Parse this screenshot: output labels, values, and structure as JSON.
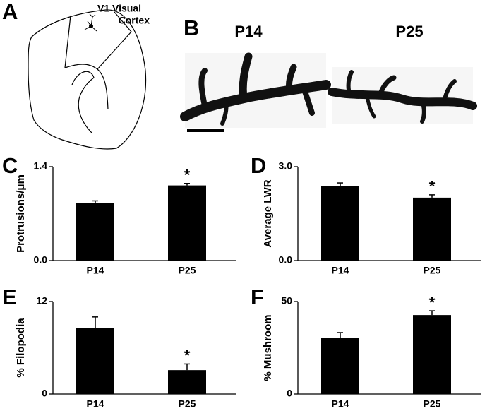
{
  "panel_a": {
    "label": "A",
    "annotation": [
      "V1 Visual",
      "Cortex"
    ]
  },
  "panel_b": {
    "label": "B",
    "images": [
      "P14",
      "P25"
    ]
  },
  "chart_data": [
    {
      "type": "bar",
      "label": "C",
      "ylabel": "Protrusions/μm",
      "categories": [
        "P14",
        "P25"
      ],
      "values": [
        0.86,
        1.12
      ],
      "errors": [
        0.03,
        0.03
      ],
      "color": "#000000",
      "ylim": [
        0,
        1.4
      ],
      "yticks": [
        {
          "value": 0,
          "label": "0.0"
        },
        1.4
      ],
      "annotations": [
        {
          "text": "*",
          "x": "P25"
        }
      ]
    },
    {
      "type": "bar",
      "label": "D",
      "ylabel": "Average LWR",
      "categories": [
        "P14",
        "P25"
      ],
      "values": [
        2.37,
        2.01
      ],
      "errors": [
        0.11,
        0.09
      ],
      "color": "#000000",
      "ylim": [
        0,
        3
      ],
      "yticks": [
        {
          "value": 0,
          "label": "0.0"
        },
        {
          "value": 3,
          "label": "3.0"
        }
      ],
      "annotations": [
        {
          "text": "*",
          "x": "P25"
        }
      ]
    },
    {
      "type": "bar",
      "label": "E",
      "ylabel": "% Filopodia",
      "categories": [
        "P14",
        "P25"
      ],
      "values": [
        8.6,
        3.1
      ],
      "errors": [
        1.4,
        0.8
      ],
      "color": "#000000",
      "ylim": [
        0,
        12
      ],
      "yticks": [
        0,
        12
      ],
      "annotations": [
        {
          "text": "*",
          "x": "P25"
        }
      ]
    },
    {
      "type": "bar",
      "label": "F",
      "ylabel": "% Mushroom",
      "categories": [
        "P14",
        "P25"
      ],
      "values": [
        30.5,
        42.7
      ],
      "errors": [
        2.7,
        2.3
      ],
      "color": "#000000",
      "ylim": [
        0,
        50
      ],
      "yticks": [
        0,
        50
      ],
      "annotations": [
        {
          "text": "*",
          "x": "P25"
        }
      ]
    }
  ]
}
